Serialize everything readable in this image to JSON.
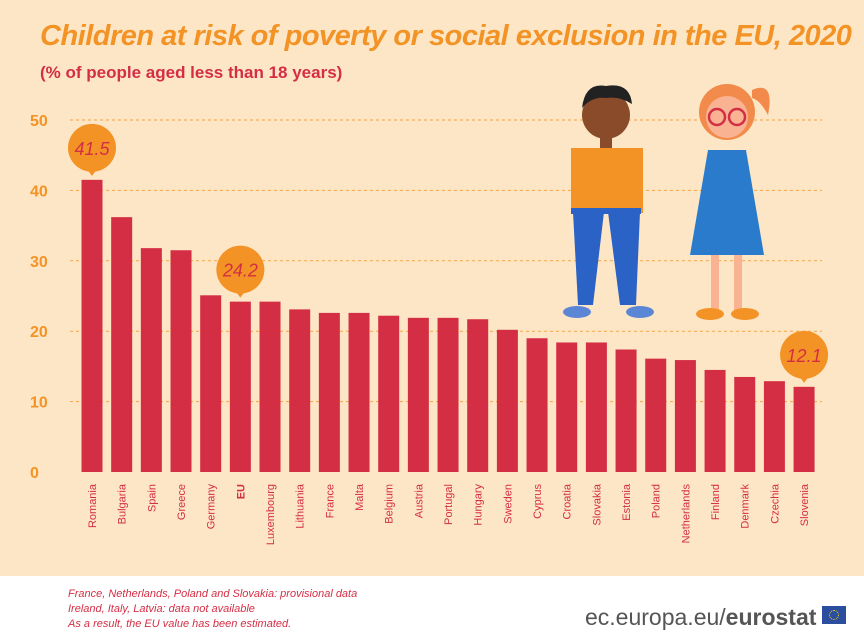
{
  "title": "Children at risk of poverty or social exclusion in the EU, 2020",
  "subtitle": "(% of people aged less than 18 years)",
  "notes": [
    "France, Netherlands, Poland and Slovakia: provisional data",
    "Ireland, Italy, Latvia: data not available",
    "As a result, the EU value has been estimated."
  ],
  "source": {
    "prefix": "ec.europa.eu/",
    "brand": "eurostat"
  },
  "colors": {
    "background": "#fde6c6",
    "bar": "#d42e45",
    "bubble": "#f39325",
    "title": "#f39325",
    "tick": "#f39325"
  },
  "chart_data": {
    "type": "bar",
    "title": "Children at risk of poverty or social exclusion in the EU, 2020",
    "ylabel": "",
    "xlabel": "",
    "ylim": [
      0,
      50
    ],
    "yticks": [
      0,
      10,
      20,
      30,
      40,
      50
    ],
    "grid": true,
    "categories": [
      "Romania",
      "Bulgaria",
      "Spain",
      "Greece",
      "Germany",
      "EU",
      "Luxembourg",
      "Lithuania",
      "France",
      "Malta",
      "Belgium",
      "Austria",
      "Portugal",
      "Hungary",
      "Sweden",
      "Cyprus",
      "Croatia",
      "Slovakia",
      "Estonia",
      "Poland",
      "Netherlands",
      "Finland",
      "Denmark",
      "Czechia",
      "Slovenia"
    ],
    "values": [
      41.5,
      36.2,
      31.8,
      31.5,
      25.1,
      24.2,
      24.2,
      23.1,
      22.6,
      22.6,
      22.2,
      21.9,
      21.9,
      21.7,
      20.2,
      19.0,
      18.4,
      18.4,
      17.4,
      16.1,
      15.9,
      14.5,
      13.5,
      12.9,
      12.1
    ],
    "highlight_category": "EU",
    "annotations": [
      {
        "category": "Romania",
        "label": "41.5"
      },
      {
        "category": "EU",
        "label": "24.2"
      },
      {
        "category": "Slovenia",
        "label": "12.1"
      }
    ]
  }
}
